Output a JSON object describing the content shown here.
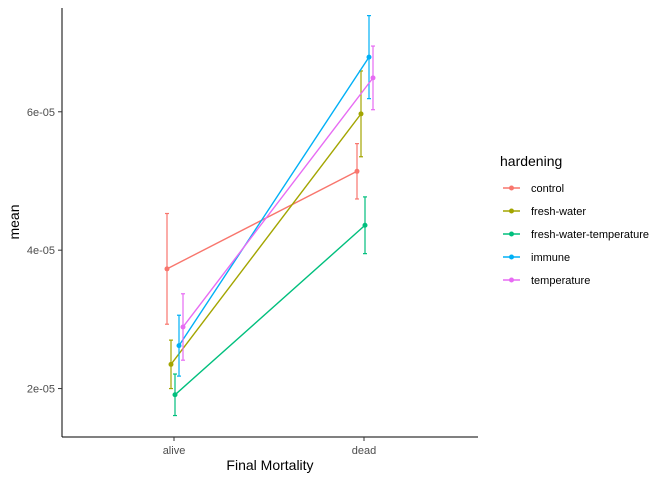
{
  "chart_data": {
    "type": "line",
    "xlabel": "Final Mortality",
    "ylabel": "mean",
    "categories": [
      "alive",
      "dead"
    ],
    "ylim": [
      1.3e-05,
      7.5e-05
    ],
    "yticks": [
      2e-05,
      4e-05,
      6e-05
    ],
    "ytick_labels": [
      "2e-05",
      "4e-05",
      "6e-05"
    ],
    "grid": false,
    "legend": {
      "title": "hardening",
      "position": "right"
    },
    "error_bars": true,
    "series": [
      {
        "name": "control",
        "color": "#F8766D",
        "values": [
          3.73e-05,
          5.14e-05
        ],
        "lower": [
          2.93e-05,
          4.74e-05
        ],
        "upper": [
          4.53e-05,
          5.54e-05
        ]
      },
      {
        "name": "fresh-water",
        "color": "#A3A500",
        "values": [
          2.35e-05,
          5.97e-05
        ],
        "lower": [
          2e-05,
          5.35e-05
        ],
        "upper": [
          2.7e-05,
          6.59e-05
        ]
      },
      {
        "name": "fresh-water-temperature",
        "color": "#00BF7D",
        "values": [
          1.91e-05,
          4.36e-05
        ],
        "lower": [
          1.61e-05,
          3.95e-05
        ],
        "upper": [
          2.21e-05,
          4.77e-05
        ]
      },
      {
        "name": "immune",
        "color": "#00B0F6",
        "values": [
          2.62e-05,
          6.79e-05
        ],
        "lower": [
          2.18e-05,
          6.19e-05
        ],
        "upper": [
          3.06e-05,
          7.39e-05
        ]
      },
      {
        "name": "temperature",
        "color": "#E76BF3",
        "values": [
          2.89e-05,
          6.49e-05
        ],
        "lower": [
          2.41e-05,
          6.03e-05
        ],
        "upper": [
          3.37e-05,
          6.95e-05
        ]
      }
    ]
  }
}
